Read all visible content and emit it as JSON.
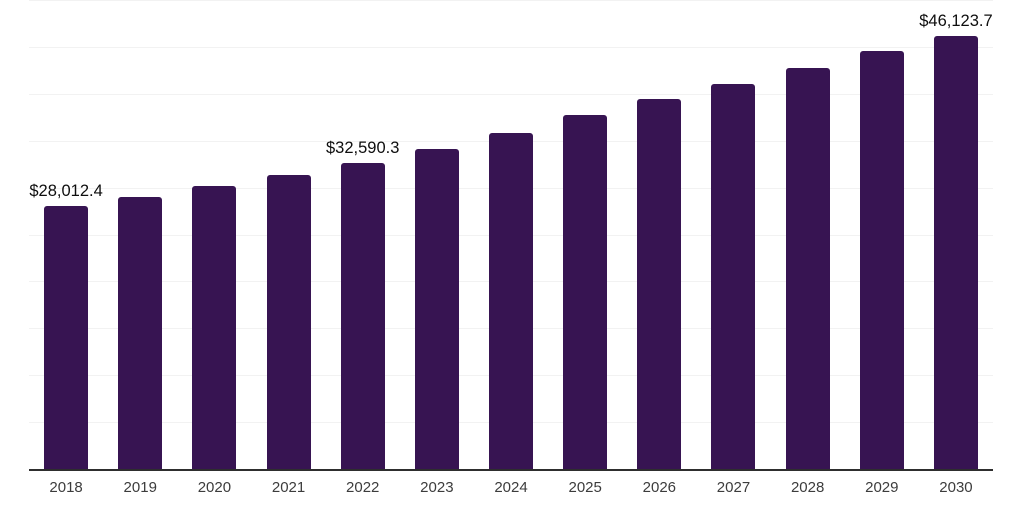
{
  "chart_data": {
    "type": "bar",
    "title": "",
    "xlabel": "",
    "ylabel": "",
    "categories": [
      "2018",
      "2019",
      "2020",
      "2021",
      "2022",
      "2023",
      "2024",
      "2025",
      "2026",
      "2027",
      "2028",
      "2029",
      "2030"
    ],
    "values": [
      28012.4,
      28980,
      30160,
      31340,
      32590.3,
      34120,
      35840,
      37770,
      39480,
      41090,
      42800,
      44520,
      46123.7
    ],
    "value_labels": [
      {
        "index": 0,
        "text": "$28,012.4"
      },
      {
        "index": 4,
        "text": "$32,590.3"
      },
      {
        "index": 12,
        "text": "$46,123.7"
      }
    ],
    "ylim": [
      0,
      50000
    ],
    "gridline_step": 5000,
    "grid": "horizontal",
    "legend_position": "none",
    "y_tick_labels_visible": false,
    "colors": {
      "bar": "#371452",
      "axis_line": "#2e2e2e",
      "gridline": "#f2f2f2",
      "value_label_text": "#0e0e0e",
      "x_tick_text": "#3c3c3c",
      "background": "#ffffff"
    }
  }
}
